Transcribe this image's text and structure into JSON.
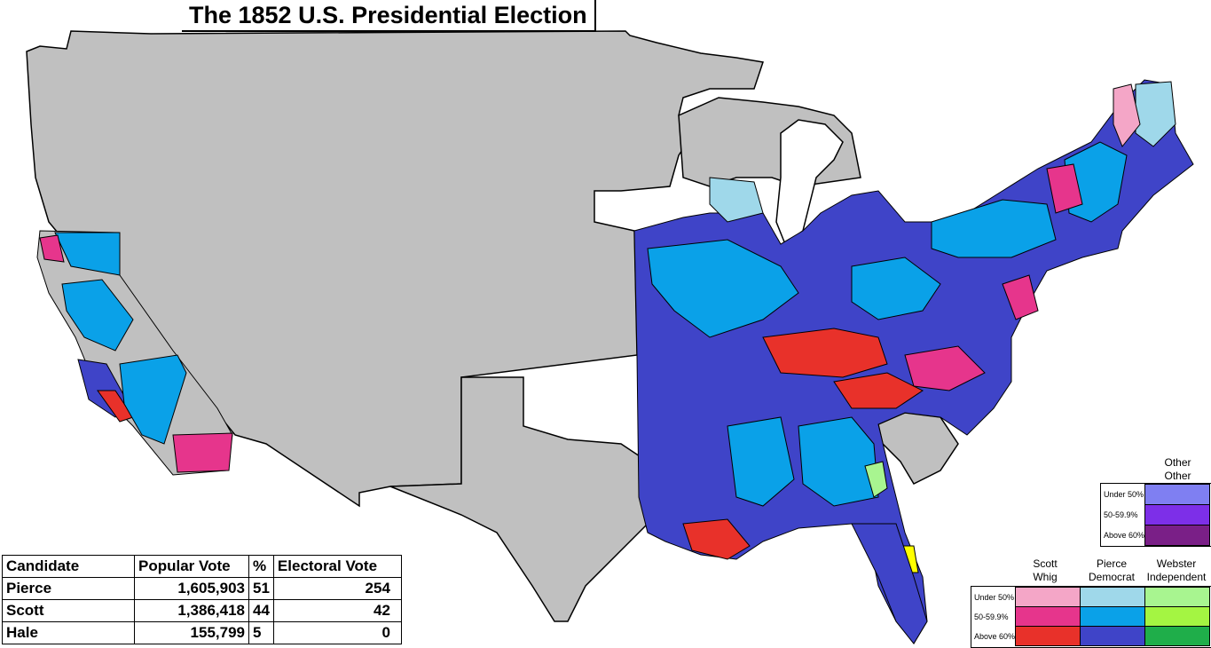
{
  "title": "The 1852 U.S. Presidential Election",
  "results_table": {
    "headers": [
      "Candidate",
      "Popular Vote",
      "%",
      "Electoral Vote"
    ],
    "rows": [
      {
        "candidate": "Pierce",
        "popular_vote": "1,605,903",
        "percent": "51",
        "electoral_vote": "254"
      },
      {
        "candidate": "Scott",
        "popular_vote": "1,386,418",
        "percent": "44",
        "electoral_vote": "42"
      },
      {
        "candidate": "Hale",
        "popular_vote": "155,799",
        "percent": "5",
        "electoral_vote": "0"
      }
    ]
  },
  "legend_main": {
    "columns": [
      {
        "line1": "Scott",
        "line2": "Whig",
        "colors": [
          "#f4a6c7",
          "#e6358c",
          "#e8312a"
        ]
      },
      {
        "line1": "Pierce",
        "line2": "Democrat",
        "colors": [
          "#9fd8ea",
          "#0aa1e8",
          "#3f44c8"
        ]
      },
      {
        "line1": "Webster",
        "line2": "Independent",
        "colors": [
          "#a8f590",
          "#a4f542",
          "#1fae4a"
        ]
      }
    ],
    "rows": [
      "Under 50%",
      "50-59.9%",
      "Above 60%"
    ]
  },
  "legend_other": {
    "line1": "Other",
    "line2": "Other",
    "rows": [
      "Under 50%",
      "50-59.9%",
      "Above 60%"
    ],
    "colors": [
      "#7f7ff2",
      "#7d2fe8",
      "#7a1f87"
    ]
  },
  "map_colors": {
    "no_data": "#c0c0c0",
    "border": "#000000",
    "hale_yellow": "#ffff00"
  }
}
